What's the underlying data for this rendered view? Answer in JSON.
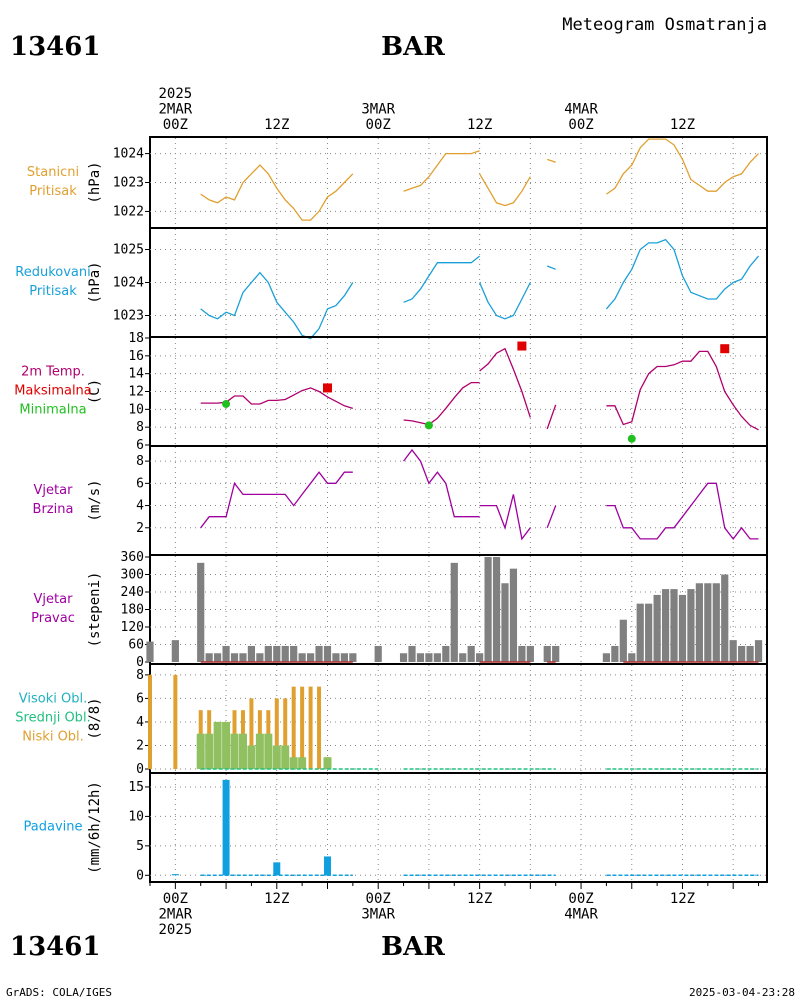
{
  "header": {
    "station_id": "13461",
    "station_name": "BAR",
    "chart_title": "Meteogram Osmatranja"
  },
  "footer": {
    "left": "GrADS: COLA/IGES",
    "right": "2025-03-04-23:28"
  },
  "time_axis": {
    "top_labels": [
      {
        "hour": 0,
        "lines": [
          "2025",
          "2MAR",
          "00Z"
        ]
      },
      {
        "hour": 12,
        "lines": [
          "12Z"
        ]
      },
      {
        "hour": 24,
        "lines": [
          "3MAR",
          "00Z"
        ]
      },
      {
        "hour": 36,
        "lines": [
          "12Z"
        ]
      },
      {
        "hour": 48,
        "lines": [
          "4MAR",
          "00Z"
        ]
      },
      {
        "hour": 60,
        "lines": [
          "12Z"
        ]
      }
    ],
    "bottom_labels": [
      {
        "hour": 0,
        "lines": [
          "00Z",
          "2MAR",
          "2025"
        ]
      },
      {
        "hour": 12,
        "lines": [
          "12Z"
        ]
      },
      {
        "hour": 24,
        "lines": [
          "00Z",
          "3MAR"
        ]
      },
      {
        "hour": 36,
        "lines": [
          "12Z"
        ]
      },
      {
        "hour": 48,
        "lines": [
          "00Z",
          "4MAR"
        ]
      },
      {
        "hour": 60,
        "lines": [
          "12Z"
        ]
      }
    ],
    "range_hours": [
      -3,
      70
    ]
  },
  "colors": {
    "station_pressure": "#e0a030",
    "reduced_pressure": "#1aa0d8",
    "temperature": "#b0006e",
    "tmax": "#e00000",
    "tmin": "#20c020",
    "wind": "#a000a0",
    "wind_dir_bar": "#808080",
    "wind_dir_base": "#b03030",
    "high_cloud": "#20b0c0",
    "mid_cloud": "#20c080",
    "low_cloud": "#e0a030",
    "mid_cloud_bar": "#90c060",
    "precip": "#10a0e0"
  },
  "chart_data": [
    {
      "type": "line",
      "id": "station_pressure",
      "side_labels": [
        "Stanicni",
        "Pritisak"
      ],
      "ylabel": "(hPa)",
      "ylim": [
        1021.6,
        1024.4
      ],
      "yticks": [
        1022,
        1023,
        1024
      ],
      "series": [
        {
          "x": [
            3,
            4,
            5,
            6,
            7,
            8,
            9,
            10,
            11,
            12,
            13,
            14,
            15,
            16,
            17,
            18,
            19,
            20,
            21
          ],
          "y": [
            1022.6,
            1022.4,
            1022.3,
            1022.5,
            1022.4,
            1023.0,
            1023.3,
            1023.6,
            1023.3,
            1022.8,
            1022.4,
            1022.1,
            1021.7,
            1021.7,
            1022.0,
            1022.5,
            1022.7,
            1023.0,
            1023.3
          ]
        },
        {
          "x": [
            27,
            28,
            29,
            30,
            31,
            32,
            33,
            34,
            35,
            36
          ],
          "y": [
            1022.7,
            1022.8,
            1022.9,
            1023.2,
            1023.6,
            1024.0,
            1024.0,
            1024.0,
            1024.0,
            1024.1
          ]
        },
        {
          "x": [
            36,
            37,
            38,
            39,
            40,
            41,
            42
          ],
          "y": [
            1023.3,
            1022.8,
            1022.3,
            1022.2,
            1022.3,
            1022.7,
            1023.2
          ]
        },
        {
          "x": [
            44,
            45
          ],
          "y": [
            1023.8,
            1023.7
          ]
        },
        {
          "x": [
            51,
            52,
            53,
            54,
            55,
            56,
            57,
            58,
            59,
            60,
            61,
            62,
            63,
            64,
            65,
            66,
            67,
            68,
            69
          ],
          "y": [
            1022.6,
            1022.8,
            1023.3,
            1023.6,
            1024.2,
            1024.5,
            1024.5,
            1024.5,
            1024.3,
            1023.8,
            1023.1,
            1022.9,
            1022.7,
            1022.7,
            1023.0,
            1023.2,
            1023.3,
            1023.7,
            1024.0
          ]
        }
      ]
    },
    {
      "type": "line",
      "id": "reduced_pressure",
      "side_labels": [
        "Redukovani",
        "Pritisak"
      ],
      "ylabel": "(hPa)",
      "ylim": [
        1022.5,
        1025.5
      ],
      "yticks": [
        1023,
        1024,
        1025
      ],
      "series": [
        {
          "x": [
            3,
            4,
            5,
            6,
            7,
            8,
            9,
            10,
            11,
            12,
            13,
            14,
            15,
            16,
            17,
            18,
            19,
            20,
            21
          ],
          "y": [
            1023.2,
            1023.0,
            1022.9,
            1023.1,
            1023.0,
            1023.7,
            1024.0,
            1024.3,
            1024.0,
            1023.4,
            1023.1,
            1022.8,
            1022.4,
            1022.3,
            1022.6,
            1023.2,
            1023.3,
            1023.6,
            1024.0
          ]
        },
        {
          "x": [
            27,
            28,
            29,
            30,
            31,
            32,
            33,
            34,
            35,
            36
          ],
          "y": [
            1023.4,
            1023.5,
            1023.8,
            1024.2,
            1024.6,
            1024.6,
            1024.6,
            1024.6,
            1024.6,
            1024.8
          ]
        },
        {
          "x": [
            36,
            37,
            38,
            39,
            40,
            41,
            42
          ],
          "y": [
            1024.0,
            1023.4,
            1023.0,
            1022.9,
            1023.0,
            1023.5,
            1024.0
          ]
        },
        {
          "x": [
            44,
            45
          ],
          "y": [
            1024.5,
            1024.4
          ]
        },
        {
          "x": [
            51,
            52,
            53,
            54,
            55,
            56,
            57,
            58,
            59,
            60,
            61,
            62,
            63,
            64,
            65,
            66,
            67,
            68,
            69
          ],
          "y": [
            1023.2,
            1023.5,
            1024.0,
            1024.4,
            1025.0,
            1025.2,
            1025.2,
            1025.3,
            1025.0,
            1024.2,
            1023.7,
            1023.6,
            1023.5,
            1023.5,
            1023.8,
            1024.0,
            1024.1,
            1024.5,
            1024.8
          ]
        }
      ]
    },
    {
      "type": "line",
      "id": "temperature",
      "side_labels": [
        "2m Temp.",
        "Maksimalna",
        "Minimalna"
      ],
      "ylabel": "(C)",
      "ylim": [
        6,
        18
      ],
      "yticks": [
        6,
        8,
        10,
        12,
        14,
        16,
        18
      ],
      "series": [
        {
          "x": [
            3,
            4,
            5,
            6,
            7,
            8,
            9,
            10,
            11,
            12,
            13,
            14,
            15,
            16,
            17,
            18,
            19,
            20,
            21
          ],
          "y": [
            10.7,
            10.7,
            10.7,
            10.8,
            11.5,
            11.5,
            10.6,
            10.6,
            11.0,
            11.0,
            11.1,
            11.6,
            12.1,
            12.4,
            12.0,
            11.4,
            10.9,
            10.4,
            10.1
          ]
        },
        {
          "x": [
            27,
            28,
            29,
            30,
            31,
            32,
            33,
            34,
            35,
            36
          ],
          "y": [
            8.8,
            8.7,
            8.5,
            8.3,
            9.0,
            10.1,
            11.3,
            12.4,
            13.0,
            13.0
          ]
        },
        {
          "x": [
            36,
            37,
            38,
            39,
            40,
            41,
            42
          ],
          "y": [
            14.3,
            15.1,
            16.3,
            16.8,
            14.5,
            12.0,
            9.1
          ]
        },
        {
          "x": [
            44,
            45
          ],
          "y": [
            7.8,
            10.5
          ]
        },
        {
          "x": [
            51,
            52,
            53,
            54,
            55,
            56,
            57,
            58,
            59,
            60,
            61,
            62,
            63,
            64,
            65,
            66,
            67,
            68,
            69
          ],
          "y": [
            10.4,
            10.4,
            8.3,
            8.6,
            12.2,
            14.0,
            14.8,
            14.8,
            15.0,
            15.4,
            15.4,
            16.5,
            16.5,
            14.8,
            12.0,
            10.5,
            9.2,
            8.2,
            7.7
          ]
        }
      ],
      "tmax_points": [
        {
          "x": 18,
          "y": 12.4
        },
        {
          "x": 41,
          "y": 17.1
        },
        {
          "x": 65,
          "y": 16.8
        }
      ],
      "tmin_points": [
        {
          "x": 6,
          "y": 10.6
        },
        {
          "x": 30,
          "y": 8.2
        },
        {
          "x": 54,
          "y": 6.7
        }
      ]
    },
    {
      "type": "line",
      "id": "wind_speed",
      "side_labels": [
        "Vjetar",
        "Brzina"
      ],
      "ylabel": "(m/s)",
      "ylim": [
        0,
        9
      ],
      "yticks": [
        2,
        4,
        6,
        8
      ],
      "series": [
        {
          "x": [
            3,
            4,
            5,
            6,
            7,
            8,
            9,
            10,
            11,
            12,
            13,
            14,
            15,
            16,
            17,
            18,
            19,
            20,
            21
          ],
          "y": [
            2,
            3,
            3,
            3,
            6,
            5,
            5,
            5,
            5,
            5,
            5,
            4,
            5,
            6,
            7,
            6,
            6,
            7,
            7
          ]
        },
        {
          "x": [
            27,
            28,
            29,
            30,
            31,
            32,
            33,
            34,
            35,
            36
          ],
          "y": [
            8,
            9,
            8,
            6,
            7,
            6,
            3,
            3,
            3,
            3
          ]
        },
        {
          "x": [
            36,
            37,
            38,
            39,
            40,
            41,
            42
          ],
          "y": [
            4,
            4,
            4,
            2,
            5,
            1,
            2
          ]
        },
        {
          "x": [
            44,
            45
          ],
          "y": [
            2,
            4
          ]
        },
        {
          "x": [
            51,
            52,
            53,
            54,
            55,
            56,
            57,
            58,
            59,
            60,
            61,
            62,
            63,
            64,
            65,
            66,
            67,
            68,
            69
          ],
          "y": [
            4,
            4,
            2,
            2,
            1,
            1,
            1,
            2,
            2,
            3,
            4,
            5,
            6,
            6,
            2,
            1,
            2,
            1,
            1
          ]
        }
      ]
    },
    {
      "type": "bar",
      "id": "wind_direction",
      "side_labels": [
        "Vjetar",
        "Pravac"
      ],
      "ylabel": "(stepeni)",
      "ylim": [
        0,
        360
      ],
      "yticks": [
        0,
        60,
        120,
        180,
        240,
        300,
        360
      ],
      "x": [
        -3,
        0,
        3,
        4,
        5,
        6,
        7,
        8,
        9,
        10,
        11,
        12,
        13,
        14,
        15,
        16,
        17,
        18,
        19,
        20,
        21,
        24,
        27,
        28,
        29,
        30,
        31,
        32,
        33,
        34,
        35,
        36,
        37,
        38,
        39,
        40,
        41,
        42,
        44,
        45,
        51,
        52,
        53,
        54,
        55,
        56,
        57,
        58,
        59,
        60,
        61,
        62,
        63,
        64,
        65,
        66,
        67,
        68,
        69
      ],
      "values": [
        70,
        75,
        340,
        30,
        30,
        55,
        30,
        30,
        55,
        30,
        55,
        55,
        55,
        55,
        30,
        30,
        55,
        55,
        30,
        30,
        30,
        55,
        30,
        55,
        30,
        30,
        30,
        55,
        340,
        30,
        55,
        30,
        360,
        360,
        270,
        320,
        55,
        55,
        55,
        55,
        30,
        55,
        145,
        30,
        200,
        200,
        230,
        250,
        250,
        230,
        250,
        270,
        270,
        270,
        300,
        75,
        55,
        55,
        75
      ]
    },
    {
      "type": "bar",
      "id": "clouds",
      "side_labels": [
        "Visoki Obl.",
        "Srednji Obl.",
        "Niski Obl."
      ],
      "ylabel": "(8/8)",
      "ylim": [
        0,
        8.5
      ],
      "yticks": [
        0,
        2,
        4,
        6,
        8
      ],
      "x": [
        -3,
        0,
        3,
        4,
        5,
        6,
        7,
        8,
        9,
        10,
        11,
        12,
        13,
        14,
        15,
        16,
        17,
        18
      ],
      "series": [
        {
          "name": "Niski Obl.",
          "values": [
            8,
            8,
            5,
            5,
            4,
            4,
            5,
            5,
            6,
            5,
            5,
            6,
            6,
            7,
            7,
            7,
            7,
            1
          ]
        },
        {
          "name": "Srednji Obl.",
          "values": [
            0,
            0,
            3,
            3,
            4,
            4,
            3,
            3,
            2,
            3,
            3,
            2,
            2,
            1,
            1,
            0,
            0,
            1
          ]
        }
      ]
    },
    {
      "type": "bar",
      "id": "precipitation",
      "side_labels": [
        "Padavine"
      ],
      "ylabel": "(mm/6h/12h)",
      "ylim": [
        -0.8,
        17.2
      ],
      "yticks": [
        0,
        5,
        10,
        15
      ],
      "x": [
        0,
        6,
        12,
        18
      ],
      "values": [
        0.2,
        16.2,
        2.2,
        3.2
      ]
    }
  ]
}
